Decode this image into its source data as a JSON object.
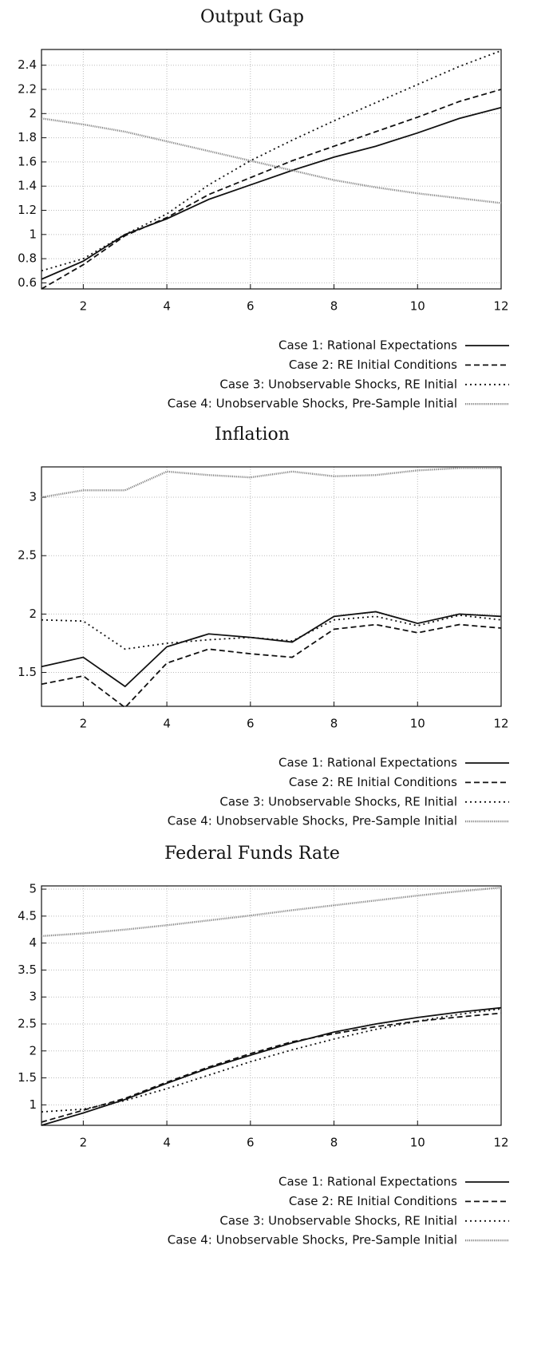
{
  "chart_data": [
    {
      "type": "line",
      "title": "Output Gap",
      "x": [
        1,
        2,
        3,
        4,
        5,
        6,
        7,
        8,
        9,
        10,
        11,
        12
      ],
      "xlim": [
        1,
        12
      ],
      "xticks": [
        2,
        4,
        6,
        8,
        10,
        12
      ],
      "ylim": [
        0.55,
        2.53
      ],
      "yticks": [
        0.6,
        0.8,
        1,
        1.2,
        1.4,
        1.6,
        1.8,
        2,
        2.2,
        2.4
      ],
      "grid": true,
      "legend": "below-right",
      "series": [
        {
          "name": "Case 1: Rational Expectations",
          "color": "#111111",
          "line_style": "solid",
          "values": [
            0.63,
            0.78,
            1.0,
            1.13,
            1.29,
            1.41,
            1.53,
            1.64,
            1.73,
            1.84,
            1.96,
            2.05
          ]
        },
        {
          "name": "Case 2: RE Initial Conditions",
          "color": "#111111",
          "line_style": "dashed",
          "values": [
            0.55,
            0.75,
            0.99,
            1.14,
            1.33,
            1.47,
            1.61,
            1.73,
            1.85,
            1.97,
            2.1,
            2.2
          ]
        },
        {
          "name": "Case 3: Unobservable Shocks, RE Initial",
          "color": "#111111",
          "line_style": "dotted",
          "values": [
            0.7,
            0.8,
            1.0,
            1.17,
            1.41,
            1.61,
            1.78,
            1.94,
            2.09,
            2.24,
            2.39,
            2.52
          ]
        },
        {
          "name": "Case 4: Unobservable Shocks, Pre-Sample Initial",
          "color": "#888888",
          "line_style": "dense-dotted",
          "values": [
            1.96,
            1.91,
            1.85,
            1.77,
            1.69,
            1.61,
            1.53,
            1.45,
            1.39,
            1.34,
            1.3,
            1.26
          ]
        }
      ]
    },
    {
      "type": "line",
      "title": "Inflation",
      "x": [
        1,
        2,
        3,
        4,
        5,
        6,
        7,
        8,
        9,
        10,
        11,
        12
      ],
      "xlim": [
        1,
        12
      ],
      "xticks": [
        2,
        4,
        6,
        8,
        10,
        12
      ],
      "ylim": [
        1.21,
        3.26
      ],
      "yticks": [
        1.5,
        2,
        2.5,
        3
      ],
      "grid": true,
      "legend": "below-right",
      "series": [
        {
          "name": "Case 1: Rational Expectations",
          "color": "#111111",
          "line_style": "solid",
          "values": [
            1.55,
            1.63,
            1.38,
            1.72,
            1.83,
            1.8,
            1.76,
            1.98,
            2.02,
            1.92,
            2.0,
            1.98
          ]
        },
        {
          "name": "Case 2: RE Initial Conditions",
          "color": "#111111",
          "line_style": "dashed",
          "values": [
            1.4,
            1.47,
            1.2,
            1.58,
            1.7,
            1.66,
            1.63,
            1.87,
            1.91,
            1.84,
            1.91,
            1.88
          ]
        },
        {
          "name": "Case 3: Unobservable Shocks, RE Initial",
          "color": "#111111",
          "line_style": "dotted",
          "values": [
            1.95,
            1.94,
            1.7,
            1.75,
            1.78,
            1.8,
            1.77,
            1.95,
            1.98,
            1.9,
            1.99,
            1.95
          ]
        },
        {
          "name": "Case 4: Unobservable Shocks, Pre-Sample Initial",
          "color": "#888888",
          "line_style": "dense-dotted",
          "values": [
            3.0,
            3.06,
            3.06,
            3.22,
            3.19,
            3.17,
            3.22,
            3.18,
            3.19,
            3.23,
            3.25,
            3.25
          ]
        }
      ]
    },
    {
      "type": "line",
      "title": "Federal Funds Rate",
      "x": [
        1,
        2,
        3,
        4,
        5,
        6,
        7,
        8,
        9,
        10,
        11,
        12
      ],
      "xlim": [
        1,
        12
      ],
      "xticks": [
        2,
        4,
        6,
        8,
        10,
        12
      ],
      "ylim": [
        0.62,
        5.06
      ],
      "yticks": [
        1,
        1.5,
        2,
        2.5,
        3,
        3.5,
        4,
        4.5,
        5
      ],
      "grid": true,
      "legend": "below-right",
      "series": [
        {
          "name": "Case 1: Rational Expectations",
          "color": "#111111",
          "line_style": "solid",
          "values": [
            0.62,
            0.85,
            1.1,
            1.4,
            1.68,
            1.92,
            2.15,
            2.35,
            2.5,
            2.62,
            2.72,
            2.8
          ]
        },
        {
          "name": "Case 2: RE Initial Conditions",
          "color": "#111111",
          "line_style": "dashed",
          "values": [
            0.68,
            0.9,
            1.12,
            1.42,
            1.7,
            1.95,
            2.17,
            2.32,
            2.45,
            2.55,
            2.63,
            2.7
          ]
        },
        {
          "name": "Case 3: Unobservable Shocks, RE Initial",
          "color": "#111111",
          "line_style": "dotted",
          "values": [
            0.87,
            0.92,
            1.08,
            1.3,
            1.55,
            1.8,
            2.02,
            2.22,
            2.4,
            2.55,
            2.68,
            2.78
          ]
        },
        {
          "name": "Case 4: Unobservable Shocks, Pre-Sample Initial",
          "color": "#888888",
          "line_style": "dense-dotted",
          "values": [
            4.13,
            4.18,
            4.25,
            4.33,
            4.42,
            4.51,
            4.61,
            4.7,
            4.79,
            4.88,
            4.96,
            5.03
          ]
        }
      ]
    }
  ]
}
